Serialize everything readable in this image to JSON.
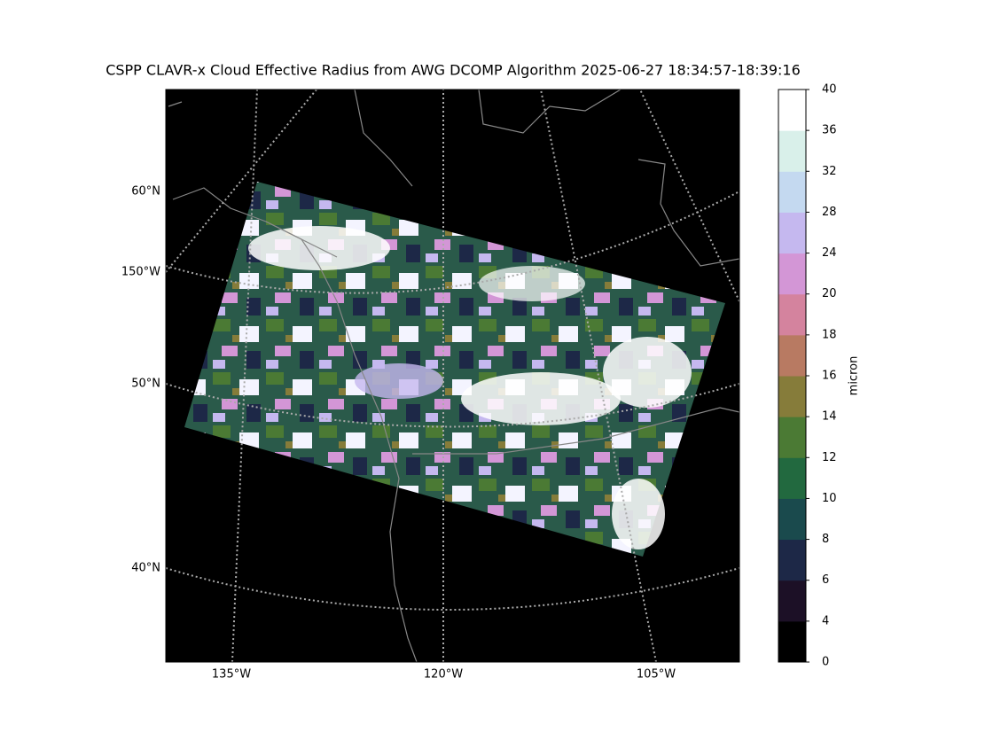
{
  "title": "CSPP CLAVR-x Cloud Effective Radius from AWG DCOMP Algorithm 2025-06-27 18:34:57-18:39:16",
  "map": {
    "lat_labels": [
      "60°N",
      "150°W",
      "50°N",
      "40°N"
    ],
    "lon_labels": [
      "135°W",
      "120°W",
      "105°W"
    ]
  },
  "colorbar": {
    "label": "micron",
    "ticks": [
      0,
      4,
      6,
      8,
      10,
      12,
      14,
      16,
      18,
      20,
      24,
      28,
      32,
      36,
      40
    ],
    "colors": [
      "#000000",
      "#1c1026",
      "#1d2847",
      "#1a4a4d",
      "#22693f",
      "#4b7a34",
      "#867c3a",
      "#b87a62",
      "#d4839e",
      "#d396d6",
      "#c5b8ef",
      "#c4d9f0",
      "#d9f0ea",
      "#ffffff"
    ]
  }
}
